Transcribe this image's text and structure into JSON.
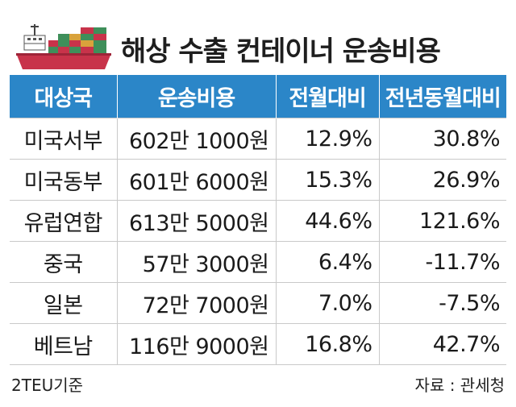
{
  "title": "해상 수출 컨테이너 운송비용",
  "table": {
    "headers": [
      "대상국",
      "운송비용",
      "전월대비",
      "전년동월대비"
    ],
    "rows": [
      {
        "country": "미국서부",
        "cost": "602만 1000원",
        "mom": "12.9%",
        "yoy": "30.8%"
      },
      {
        "country": "미국동부",
        "cost": "601만 6000원",
        "mom": "15.3%",
        "yoy": "26.9%"
      },
      {
        "country": "유럽연합",
        "cost": "613만 5000원",
        "mom": "44.6%",
        "yoy": "121.6%"
      },
      {
        "country": "중국",
        "cost": "57만 3000원",
        "mom": "6.4%",
        "yoy": "-11.7%"
      },
      {
        "country": "일본",
        "cost": "72만 7000원",
        "mom": "7.0%",
        "yoy": "-7.5%"
      },
      {
        "country": "베트남",
        "cost": "116만 9000원",
        "mom": "16.8%",
        "yoy": "42.7%"
      }
    ]
  },
  "footer": {
    "note": "2TEU기준",
    "source": "자료 : 관세청"
  },
  "colors": {
    "header_bg": "#2b86c8",
    "ship_hull": "#c8334a",
    "container_green": "#3f8f5a",
    "container_red": "#c8334a"
  },
  "icons": [
    "container-ship-icon"
  ]
}
